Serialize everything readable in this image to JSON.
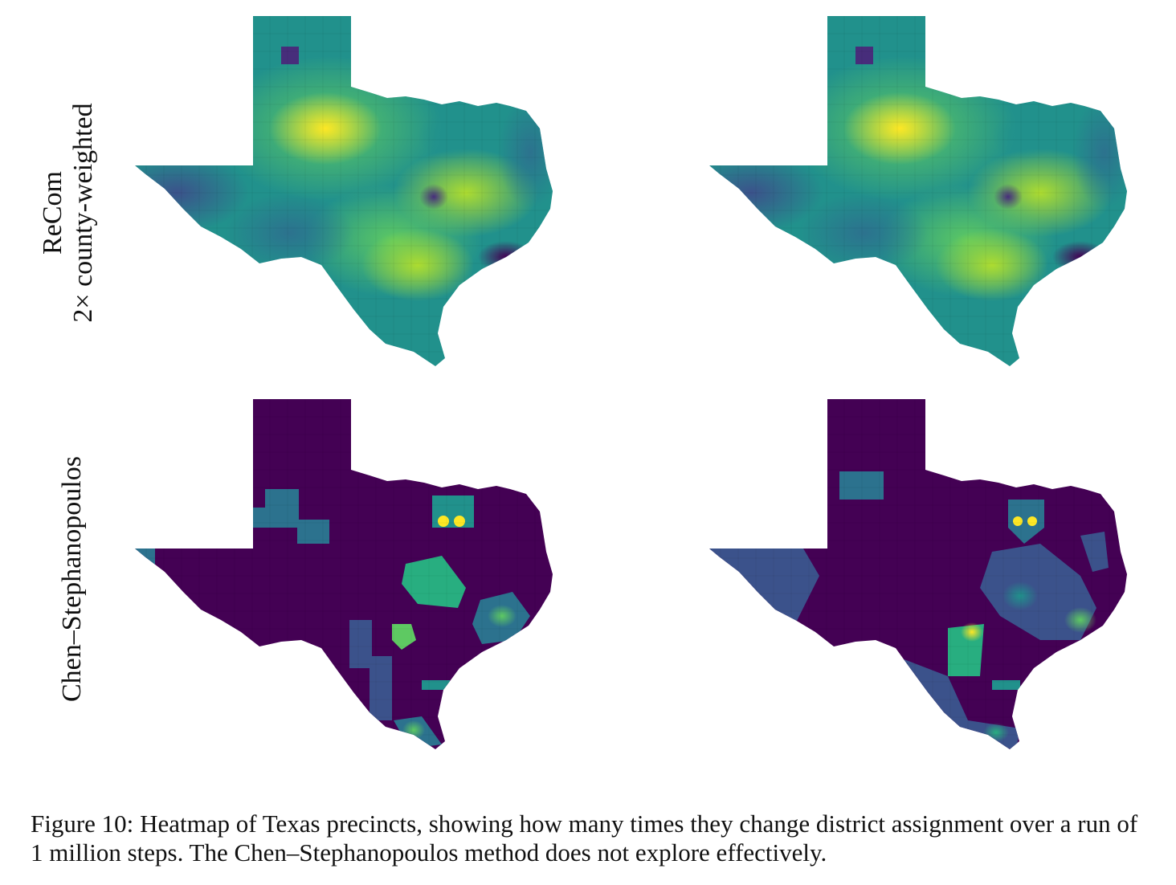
{
  "figure": {
    "row_labels": [
      {
        "line1": "ReCom",
        "line2": "2× county-weighted"
      },
      {
        "line1": "Chen–Stephanopoulos",
        "line2": ""
      }
    ],
    "caption": {
      "label": "Figure 10:",
      "text": "Heatmap of Texas precincts, showing how many times they change district assignment over a run of 1 million steps. The Chen–Stephanopoulos method does not explore effectively."
    }
  },
  "colors": {
    "low": "#440154",
    "dark_purple": "#472d7b",
    "blue": "#3b528b",
    "teal": "#2c728e",
    "mid_teal": "#21918c",
    "green": "#28ae80",
    "light_green": "#5ec962",
    "lime": "#addc30",
    "high": "#fde725"
  }
}
